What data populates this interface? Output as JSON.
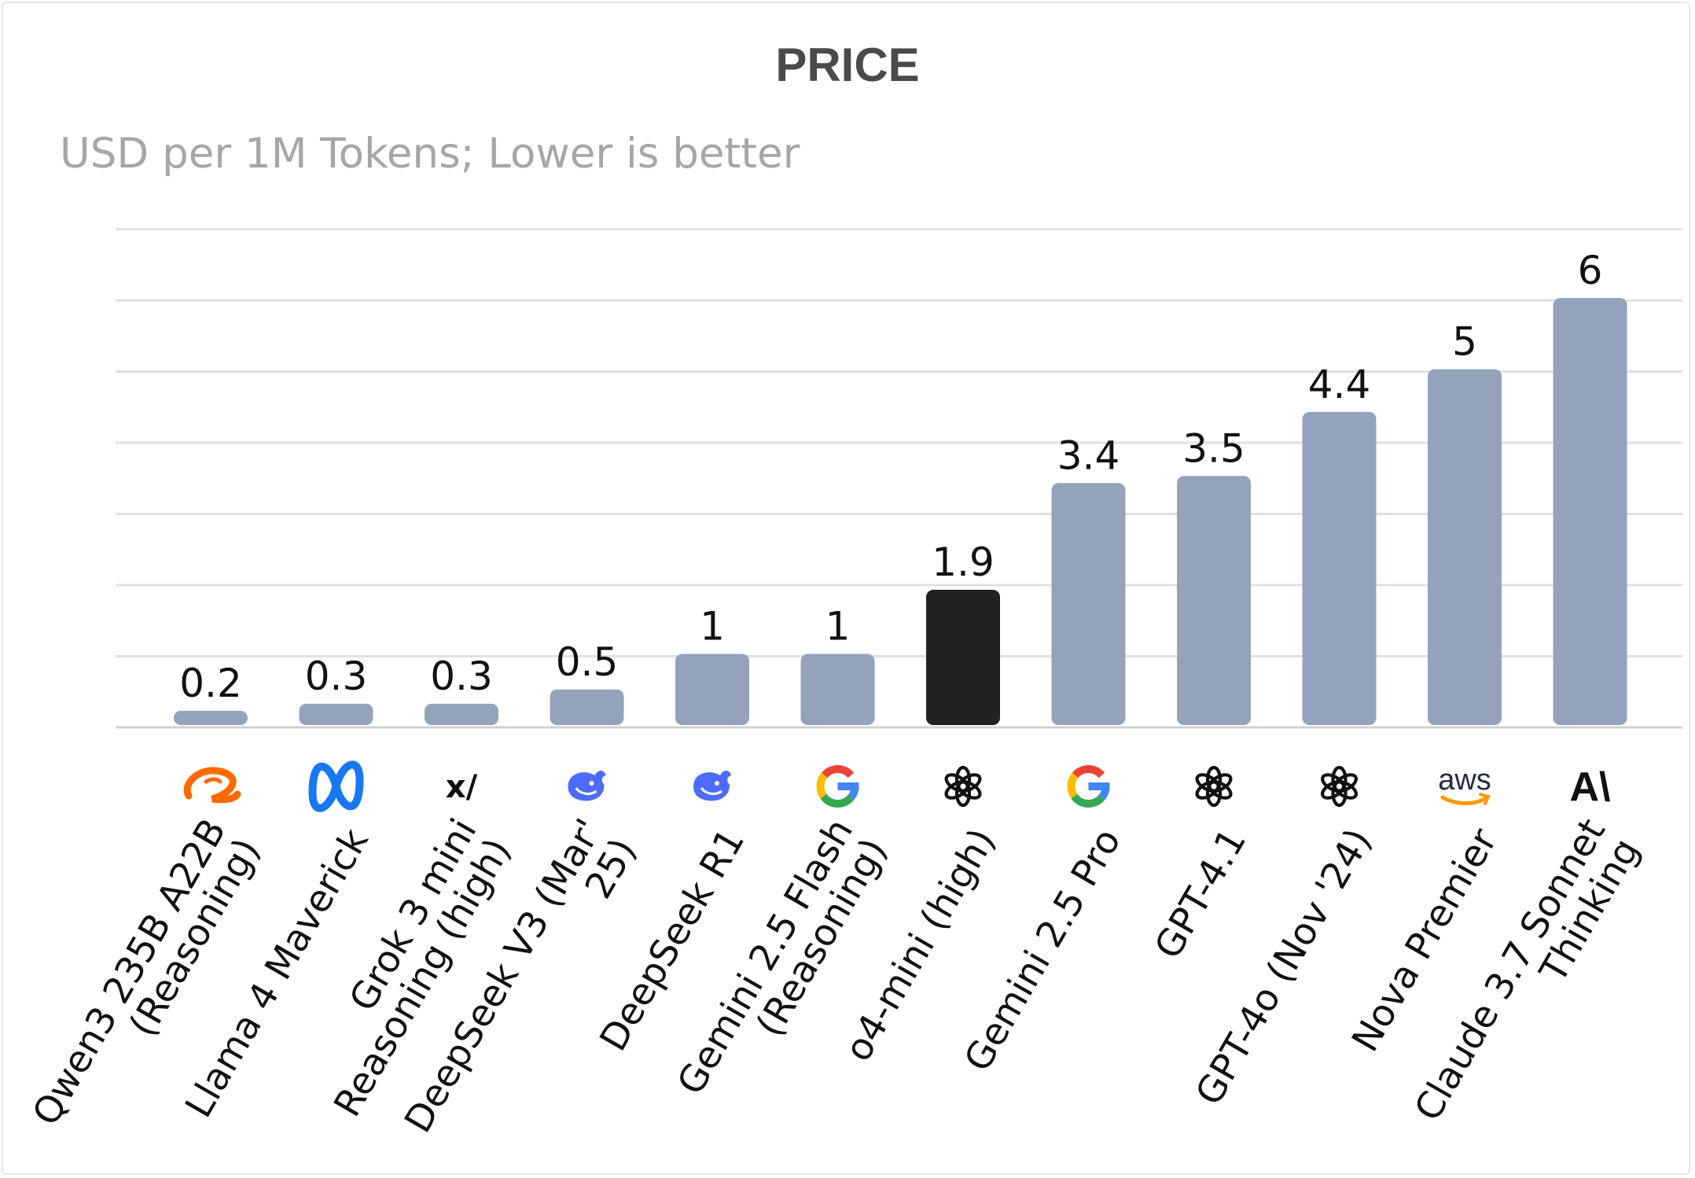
{
  "chart_data": {
    "type": "bar",
    "title": "PRICE",
    "subtitle": "USD per 1M Tokens; Lower is better",
    "categories": [
      "Qwen3 235B A22B (Reasoning)",
      "Llama 4 Maverick",
      "Grok 3 mini Reasoning (high)",
      "DeepSeek V3 (Mar' 25)",
      "DeepSeek R1",
      "Gemini 2.5 Flash (Reasoning)",
      "o4-mini (high)",
      "Gemini 2.5 Pro",
      "GPT-4.1",
      "GPT-4o (Nov '24)",
      "Nova Premier",
      "Claude 3.7 Sonnet Thinking"
    ],
    "label_lines": [
      [
        "Qwen3 235B A22B",
        "(Reasoning)"
      ],
      [
        "Llama 4 Maverick"
      ],
      [
        "Grok 3 mini",
        "Reasoning (high)"
      ],
      [
        "DeepSeek V3 (Mar'",
        "25)"
      ],
      [
        "DeepSeek R1"
      ],
      [
        "Gemini 2.5 Flash",
        "(Reasoning)"
      ],
      [
        "o4-mini (high)"
      ],
      [
        "Gemini 2.5 Pro"
      ],
      [
        "GPT-4.1"
      ],
      [
        "GPT-4o (Nov '24)"
      ],
      [
        "Nova Premier"
      ],
      [
        "Claude 3.7 Sonnet",
        "Thinking"
      ]
    ],
    "values": [
      0.2,
      0.3,
      0.3,
      0.5,
      1,
      1,
      1.9,
      3.4,
      3.5,
      4.4,
      5,
      6
    ],
    "value_labels": [
      "0.2",
      "0.3",
      "0.3",
      "0.5",
      "1",
      "1",
      "1.9",
      "3.4",
      "3.5",
      "4.4",
      "5",
      "6"
    ],
    "highlight_index": 6,
    "ylim": [
      0,
      7
    ],
    "grid": true,
    "legend": "none",
    "colors": {
      "bar": "#94a3bc",
      "highlight": "#222222",
      "grid": "#e0e0e0",
      "label": "#111111"
    },
    "icons": [
      "alibaba-icon",
      "meta-icon",
      "xai-icon",
      "deepseek-icon",
      "deepseek-icon",
      "google-icon",
      "openai-icon",
      "google-icon",
      "openai-icon",
      "openai-icon",
      "aws-icon",
      "anthropic-icon"
    ]
  }
}
